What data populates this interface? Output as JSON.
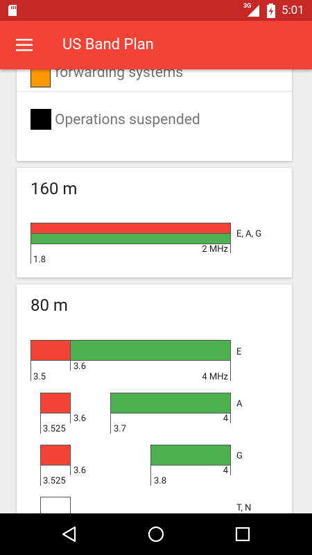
{
  "status_bar": {
    "network": "3G",
    "time": "5:01"
  },
  "app_bar": {
    "title": "US Band Plan"
  },
  "legend": [
    {
      "label": "Fixed digital message forwarding systems"
    },
    {
      "label": "Operations suspended"
    }
  ],
  "bands": [
    {
      "title": "160 m",
      "rows": [
        {
          "classes": "E, A, G",
          "labels": [
            "1.8",
            "2 MHz"
          ]
        }
      ]
    },
    {
      "title": "80 m",
      "rows": [
        {
          "classes": "E",
          "labels": [
            "3.5",
            "3.6",
            "4 MHz"
          ]
        },
        {
          "classes": "A",
          "labels": [
            "3.525",
            "3.6",
            "3.7",
            "4"
          ]
        },
        {
          "classes": "G",
          "labels": [
            "3.525",
            "3.6",
            "3.8",
            "4"
          ]
        },
        {
          "classes": "T, N"
        }
      ]
    }
  ]
}
